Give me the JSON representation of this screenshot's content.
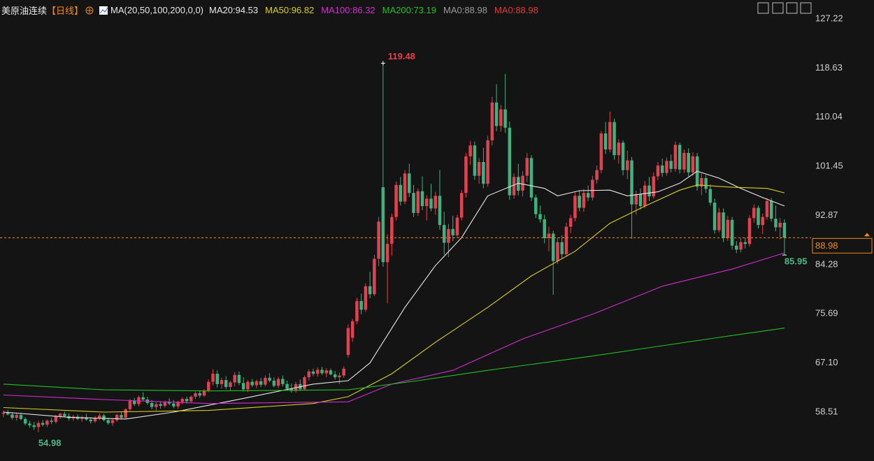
{
  "title": "美原油连续",
  "period": "【日线】",
  "indicator": "MA(20,50,100,200,0,0)",
  "chart_data": {
    "type": "candlestick",
    "legend_separator": ":",
    "up_color": "#e5404f",
    "down_color": "#3fb27f",
    "xlim": [
      -0.8,
      185.1
    ],
    "ylim": [
      49.96,
      130.52
    ],
    "yticks": [
      127.22,
      118.63,
      110.04,
      101.45,
      92.87,
      84.28,
      75.69,
      {
        "value": 67.1,
        "label": "67.10"
      },
      58.51
    ],
    "grid": false,
    "ohlc": [
      [
        58.2,
        58.8,
        57.6,
        58.4
      ],
      [
        58.4,
        58.9,
        57.9,
        58.1
      ],
      [
        58.1,
        58.5,
        57.2,
        57.5
      ],
      [
        57.5,
        58.3,
        57.0,
        58.0
      ],
      [
        58.0,
        58.4,
        57.1,
        57.3
      ],
      [
        57.3,
        57.6,
        56.2,
        56.5
      ],
      [
        56.5,
        57.0,
        55.8,
        56.2
      ],
      [
        56.2,
        56.8,
        55.4,
        55.9
      ],
      [
        55.9,
        57.0,
        54.98,
        56.6
      ],
      [
        56.6,
        57.1,
        56.0,
        56.3
      ],
      [
        56.3,
        57.2,
        55.9,
        57.0
      ],
      [
        57.0,
        57.5,
        56.4,
        56.8
      ],
      [
        56.8,
        58.0,
        56.5,
        57.8
      ],
      [
        57.8,
        58.4,
        57.3,
        58.2
      ],
      [
        58.2,
        58.6,
        57.6,
        57.8
      ],
      [
        57.8,
        58.3,
        57.0,
        57.4
      ],
      [
        57.4,
        58.0,
        57.0,
        57.7
      ],
      [
        57.7,
        58.1,
        57.1,
        57.3
      ],
      [
        57.3,
        57.9,
        56.8,
        57.6
      ],
      [
        57.6,
        58.2,
        57.0,
        57.2
      ],
      [
        57.2,
        57.6,
        56.5,
        56.9
      ],
      [
        56.9,
        57.8,
        56.6,
        57.5
      ],
      [
        57.5,
        58.3,
        57.1,
        57.9
      ],
      [
        57.9,
        58.2,
        56.9,
        57.1
      ],
      [
        57.1,
        57.5,
        56.3,
        56.6
      ],
      [
        56.6,
        57.3,
        56.1,
        57.1
      ],
      [
        57.1,
        58.2,
        56.8,
        58.0
      ],
      [
        58.0,
        58.5,
        57.2,
        57.5
      ],
      [
        57.5,
        59.2,
        57.3,
        59.0
      ],
      [
        59.0,
        60.8,
        58.7,
        60.5
      ],
      [
        60.5,
        61.0,
        59.6,
        59.9
      ],
      [
        59.9,
        61.4,
        59.5,
        61.1
      ],
      [
        61.1,
        62.0,
        60.4,
        60.7
      ],
      [
        60.7,
        61.2,
        59.8,
        60.1
      ],
      [
        60.1,
        60.6,
        59.0,
        59.4
      ],
      [
        59.4,
        60.2,
        58.8,
        59.9
      ],
      [
        59.9,
        60.4,
        59.1,
        59.6
      ],
      [
        59.6,
        60.5,
        59.3,
        60.2
      ],
      [
        60.2,
        60.9,
        59.7,
        60.0
      ],
      [
        60.0,
        60.6,
        59.2,
        59.5
      ],
      [
        59.5,
        60.5,
        59.1,
        60.3
      ],
      [
        60.3,
        61.1,
        59.9,
        60.8
      ],
      [
        60.8,
        61.2,
        60.0,
        60.4
      ],
      [
        60.4,
        61.4,
        60.1,
        61.2
      ],
      [
        61.2,
        62.1,
        60.8,
        61.8
      ],
      [
        61.8,
        62.3,
        61.0,
        61.4
      ],
      [
        61.4,
        62.5,
        61.2,
        62.3
      ],
      [
        62.3,
        64.2,
        62.0,
        63.8
      ],
      [
        63.8,
        66.0,
        63.2,
        65.2
      ],
      [
        65.2,
        65.8,
        62.8,
        63.4
      ],
      [
        63.4,
        64.5,
        62.6,
        64.1
      ],
      [
        64.1,
        64.8,
        62.5,
        62.9
      ],
      [
        62.9,
        64.0,
        62.2,
        63.7
      ],
      [
        63.7,
        65.5,
        63.0,
        65.0
      ],
      [
        65.0,
        65.6,
        63.2,
        63.6
      ],
      [
        63.6,
        64.6,
        62.1,
        62.5
      ],
      [
        62.5,
        64.1,
        62.0,
        63.8
      ],
      [
        63.8,
        64.3,
        62.9,
        63.2
      ],
      [
        63.2,
        64.2,
        62.7,
        63.9
      ],
      [
        63.9,
        64.5,
        62.9,
        63.3
      ],
      [
        63.3,
        64.9,
        63.0,
        64.5
      ],
      [
        64.5,
        65.3,
        63.7,
        64.0
      ],
      [
        64.0,
        64.6,
        62.8,
        63.1
      ],
      [
        63.1,
        64.7,
        62.7,
        64.3
      ],
      [
        64.3,
        64.9,
        63.0,
        63.4
      ],
      [
        63.4,
        64.0,
        62.3,
        62.6
      ],
      [
        62.6,
        63.5,
        61.9,
        62.2
      ],
      [
        62.2,
        63.8,
        61.9,
        63.4
      ],
      [
        63.4,
        64.2,
        62.2,
        62.5
      ],
      [
        62.5,
        64.9,
        62.3,
        64.6
      ],
      [
        64.6,
        66.0,
        64.0,
        65.6
      ],
      [
        65.6,
        66.1,
        64.8,
        65.2
      ],
      [
        65.2,
        66.3,
        64.7,
        65.9
      ],
      [
        65.9,
        66.4,
        65.0,
        65.3
      ],
      [
        65.3,
        66.2,
        64.6,
        65.8
      ],
      [
        65.8,
        66.1,
        64.9,
        65.1
      ],
      [
        65.1,
        65.7,
        64.2,
        64.6
      ],
      [
        64.6,
        65.4,
        63.4,
        64.9
      ],
      [
        64.9,
        66.5,
        64.5,
        66.1
      ],
      [
        68.5,
        73.8,
        68.0,
        73.2
      ],
      [
        71.5,
        74.8,
        70.8,
        74.4
      ],
      [
        74.4,
        78.5,
        73.9,
        77.9
      ],
      [
        77.9,
        79.2,
        75.6,
        76.4
      ],
      [
        76.4,
        81.0,
        76.0,
        80.5
      ],
      [
        80.5,
        83.0,
        78.4,
        79.1
      ],
      [
        79.1,
        86.0,
        78.8,
        85.3
      ],
      [
        85.3,
        92.6,
        84.0,
        91.8
      ],
      [
        97.8,
        119.48,
        83.9,
        84.7
      ],
      [
        84.7,
        89.6,
        77.5,
        87.9
      ],
      [
        87.9,
        93.2,
        85.8,
        92.6
      ],
      [
        92.6,
        98.8,
        92.0,
        98.2
      ],
      [
        98.2,
        99.6,
        94.6,
        95.3
      ],
      [
        95.3,
        100.8,
        94.8,
        100.2
      ],
      [
        100.2,
        101.9,
        96.1,
        96.8
      ],
      [
        96.8,
        98.2,
        92.6,
        93.3
      ],
      [
        93.3,
        97.6,
        92.8,
        97.1
      ],
      [
        97.1,
        99.7,
        93.8,
        94.5
      ],
      [
        94.5,
        96.4,
        92.0,
        95.8
      ],
      [
        95.8,
        98.4,
        93.6,
        94.1
      ],
      [
        94.1,
        97.0,
        93.0,
        96.3
      ],
      [
        96.3,
        100.8,
        90.4,
        91.2
      ],
      [
        91.2,
        93.5,
        86.0,
        88.1
      ],
      [
        88.1,
        91.4,
        85.6,
        90.5
      ],
      [
        90.5,
        92.8,
        88.4,
        89.4
      ],
      [
        89.4,
        93.0,
        88.9,
        92.5
      ],
      [
        92.5,
        97.3,
        92.0,
        96.8
      ],
      [
        96.8,
        103.8,
        96.0,
        103.2
      ],
      [
        103.2,
        105.9,
        101.7,
        105.1
      ],
      [
        105.1,
        105.8,
        99.1,
        99.8
      ],
      [
        99.8,
        102.9,
        98.4,
        102.2
      ],
      [
        102.2,
        104.7,
        97.6,
        98.4
      ],
      [
        98.4,
        106.8,
        97.9,
        106.0
      ],
      [
        106.0,
        113.6,
        105.1,
        112.6
      ],
      [
        112.6,
        115.8,
        107.6,
        108.5
      ],
      [
        108.5,
        112.2,
        107.5,
        111.4
      ],
      [
        111.4,
        117.6,
        107.3,
        108.2
      ],
      [
        108.2,
        109.3,
        95.6,
        96.4
      ],
      [
        96.4,
        100.2,
        95.8,
        99.6
      ],
      [
        99.6,
        101.9,
        96.4,
        97.2
      ],
      [
        97.2,
        100.6,
        96.2,
        99.8
      ],
      [
        99.8,
        103.8,
        98.7,
        102.9
      ],
      [
        102.9,
        103.4,
        95.4,
        96.0
      ],
      [
        96.0,
        96.5,
        92.4,
        93.1
      ],
      [
        93.1,
        94.6,
        91.6,
        92.2
      ],
      [
        92.2,
        93.0,
        88.0,
        88.9
      ],
      [
        88.9,
        90.9,
        86.6,
        89.7
      ],
      [
        89.7,
        90.2,
        79.0,
        84.9
      ],
      [
        84.9,
        89.0,
        84.4,
        88.2
      ],
      [
        88.2,
        89.4,
        85.3,
        86.1
      ],
      [
        86.1,
        91.6,
        85.7,
        90.9
      ],
      [
        90.9,
        93.0,
        89.8,
        92.4
      ],
      [
        92.4,
        96.9,
        91.8,
        96.3
      ],
      [
        96.3,
        97.2,
        93.6,
        94.2
      ],
      [
        94.2,
        97.5,
        93.5,
        96.8
      ],
      [
        96.8,
        98.1,
        95.4,
        96.0
      ],
      [
        96.0,
        99.8,
        95.5,
        99.1
      ],
      [
        99.1,
        101.6,
        98.4,
        100.8
      ],
      [
        100.8,
        107.6,
        100.2,
        107.2
      ],
      [
        107.2,
        109.2,
        103.6,
        104.4
      ],
      [
        104.4,
        111.0,
        103.9,
        109.2
      ],
      [
        109.2,
        109.8,
        102.6,
        103.4
      ],
      [
        103.4,
        106.2,
        101.9,
        105.6
      ],
      [
        105.6,
        106.0,
        99.9,
        100.8
      ],
      [
        100.8,
        104.2,
        99.2,
        102.5
      ],
      [
        102.5,
        103.1,
        88.8,
        94.8
      ],
      [
        94.8,
        97.2,
        93.0,
        96.6
      ],
      [
        96.6,
        97.6,
        93.9,
        94.5
      ],
      [
        94.5,
        98.9,
        94.1,
        98.1
      ],
      [
        98.1,
        99.6,
        95.4,
        96.2
      ],
      [
        96.2,
        100.4,
        95.8,
        99.7
      ],
      [
        99.7,
        102.2,
        99.0,
        101.6
      ],
      [
        101.6,
        102.8,
        99.6,
        100.3
      ],
      [
        100.3,
        103.0,
        99.8,
        102.4
      ],
      [
        102.4,
        103.5,
        100.4,
        101.0
      ],
      [
        101.0,
        105.8,
        100.5,
        105.2
      ],
      [
        105.2,
        105.6,
        100.2,
        100.9
      ],
      [
        100.9,
        104.4,
        100.3,
        103.8
      ],
      [
        103.8,
        104.6,
        99.7,
        100.4
      ],
      [
        100.4,
        103.9,
        99.8,
        103.2
      ],
      [
        103.2,
        103.8,
        97.2,
        97.9
      ],
      [
        97.9,
        100.2,
        96.4,
        99.4
      ],
      [
        99.4,
        99.9,
        96.8,
        97.5
      ],
      [
        97.5,
        98.3,
        94.6,
        95.1
      ],
      [
        95.1,
        95.8,
        89.7,
        90.3
      ],
      [
        90.3,
        94.2,
        89.9,
        93.4
      ],
      [
        93.4,
        94.1,
        88.2,
        88.9
      ],
      [
        88.9,
        92.8,
        88.4,
        92.1
      ],
      [
        92.1,
        92.6,
        86.9,
        87.6
      ],
      [
        87.6,
        88.4,
        86.3,
        86.9
      ],
      [
        86.9,
        88.9,
        86.4,
        88.2
      ],
      [
        88.2,
        89.0,
        87.1,
        87.9
      ],
      [
        87.9,
        92.9,
        87.4,
        92.4
      ],
      [
        92.4,
        94.8,
        91.6,
        94.2
      ],
      [
        94.2,
        94.6,
        90.6,
        91.2
      ],
      [
        91.2,
        93.2,
        89.6,
        92.6
      ],
      [
        92.6,
        95.9,
        92.1,
        95.4
      ],
      [
        95.4,
        95.9,
        91.8,
        92.3
      ],
      [
        92.3,
        94.6,
        90.1,
        90.8
      ],
      [
        90.8,
        92.4,
        88.7,
        91.6
      ],
      [
        91.6,
        92.2,
        85.95,
        88.98
      ]
    ],
    "series": [
      {
        "name": "MA20",
        "color": "#e8e8e8",
        "x": [
          0,
          15,
          28,
          39,
          55,
          71,
          79,
          84,
          92,
          99,
          105,
          111,
          118,
          124,
          127,
          132,
          139,
          143,
          150,
          155,
          159,
          164,
          169,
          174,
          179
        ],
        "values": [
          58.5,
          57.6,
          57.3,
          58.5,
          60.9,
          63.4,
          64.0,
          67.1,
          76.8,
          84.1,
          89.0,
          96.3,
          98.5,
          97.6,
          96.3,
          97.2,
          97.3,
          96.3,
          97.0,
          98.5,
          100.6,
          99.4,
          97.6,
          96.0,
          94.53
        ]
      },
      {
        "name": "MA50",
        "color": "#d8d020",
        "x": [
          0,
          23,
          47,
          71,
          79,
          89,
          99,
          111,
          121,
          131,
          139,
          147,
          155,
          159,
          167,
          175,
          179
        ],
        "values": [
          59.3,
          58.5,
          58.8,
          60.0,
          61.2,
          65.2,
          70.7,
          76.8,
          82.3,
          86.6,
          91.5,
          94.5,
          97.3,
          98.2,
          97.8,
          97.6,
          96.82
        ]
      },
      {
        "name": "MA100",
        "color": "#d42cd4",
        "x": [
          0,
          23,
          47,
          79,
          89,
          103,
          119,
          135,
          151,
          167,
          179
        ],
        "values": [
          61.5,
          60.7,
          60.0,
          60.3,
          63.4,
          65.8,
          71.3,
          75.6,
          80.5,
          83.5,
          86.32
        ]
      },
      {
        "name": "MA200",
        "color": "#22c022",
        "x": [
          0,
          23,
          47,
          79,
          95,
          111,
          135,
          151,
          167,
          179
        ],
        "values": [
          63.4,
          62.4,
          62.2,
          62.4,
          64.0,
          65.8,
          68.3,
          70.1,
          71.9,
          73.19
        ]
      }
    ],
    "extra_legend": [
      {
        "name": "MA0",
        "color": "#9a9a9a",
        "value": 88.98
      },
      {
        "name": "MA0",
        "color": "#e03a3a",
        "value": 88.98
      }
    ]
  }
}
